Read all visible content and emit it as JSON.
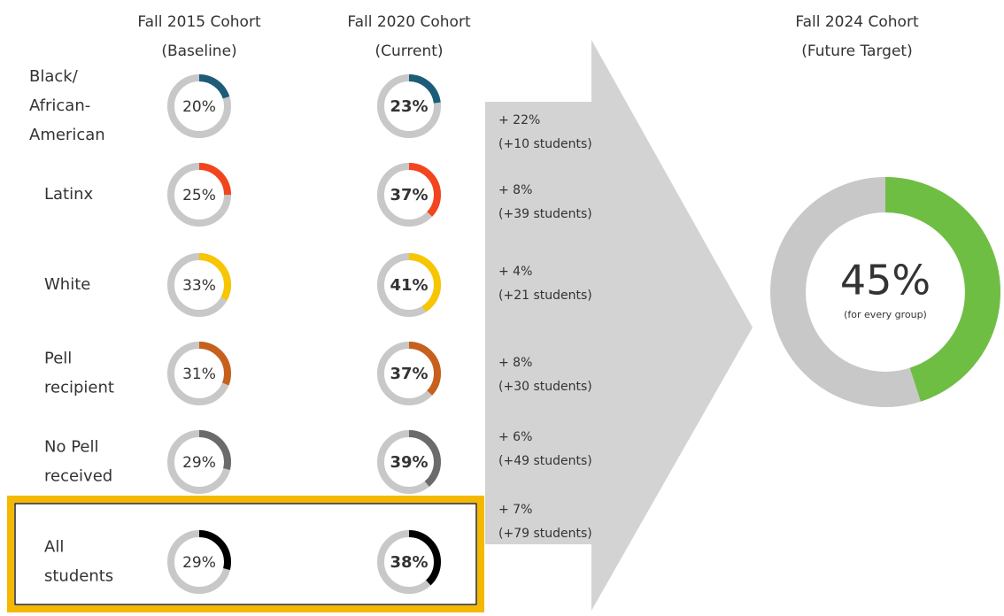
{
  "headers": {
    "baseline": [
      "Fall 2015 Cohort",
      "(Baseline)"
    ],
    "current": [
      "Fall 2020 Cohort",
      "(Current)"
    ],
    "target": [
      "Fall 2024 Cohort",
      "(Future Target)"
    ]
  },
  "rows": [
    {
      "label": [
        "Black/",
        "African-",
        "American"
      ],
      "color": "#1d5c78",
      "baseline": 20,
      "baseline_label": "20%",
      "current": 23,
      "current_label": "23%",
      "change": "+ 22%",
      "students": "(+10 students)"
    },
    {
      "label": [
        "Latinx"
      ],
      "color": "#f2451f",
      "baseline": 25,
      "baseline_label": "25%",
      "current": 37,
      "current_label": "37%",
      "change": "+ 8%",
      "students": "(+39 students)"
    },
    {
      "label": [
        "White"
      ],
      "color": "#f7c600",
      "baseline": 33,
      "baseline_label": "33%",
      "current": 41,
      "current_label": "41%",
      "change": "+ 4%",
      "students": "(+21 students)"
    },
    {
      "label": [
        "Pell",
        "recipient"
      ],
      "color": "#c6601c",
      "baseline": 31,
      "baseline_label": "31%",
      "current": 37,
      "current_label": "37%",
      "change": "+ 8%",
      "students": "(+30 students)"
    },
    {
      "label": [
        "No Pell",
        "received"
      ],
      "color": "#6b6b6b",
      "baseline": 29,
      "baseline_label": "29%",
      "current": 39,
      "current_label": "39%",
      "change": "+ 6%",
      "students": "(+49 students)"
    },
    {
      "label": [
        "All",
        "students"
      ],
      "color": "#000000",
      "baseline": 29,
      "baseline_label": "29%",
      "current": 38,
      "current_label": "38%",
      "change": "+ 7%",
      "students": "(+79 students)"
    }
  ],
  "target": {
    "value": 45,
    "label": "45%",
    "note": "(for every group)",
    "color": "#6fbe44"
  }
}
